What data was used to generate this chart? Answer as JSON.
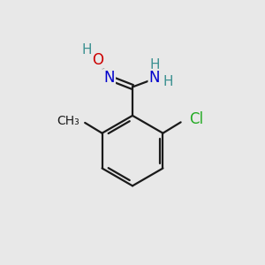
{
  "background_color": "#e8e8e8",
  "bond_color": "#1a1a1a",
  "bond_width": 1.6,
  "atom_colors": {
    "C": "#1a1a1a",
    "H": "#3a9090",
    "N": "#0000cc",
    "O": "#cc0000",
    "Cl": "#22aa22",
    "CH3": "#1a1a1a"
  },
  "figsize": [
    3.0,
    3.0
  ],
  "dpi": 100
}
